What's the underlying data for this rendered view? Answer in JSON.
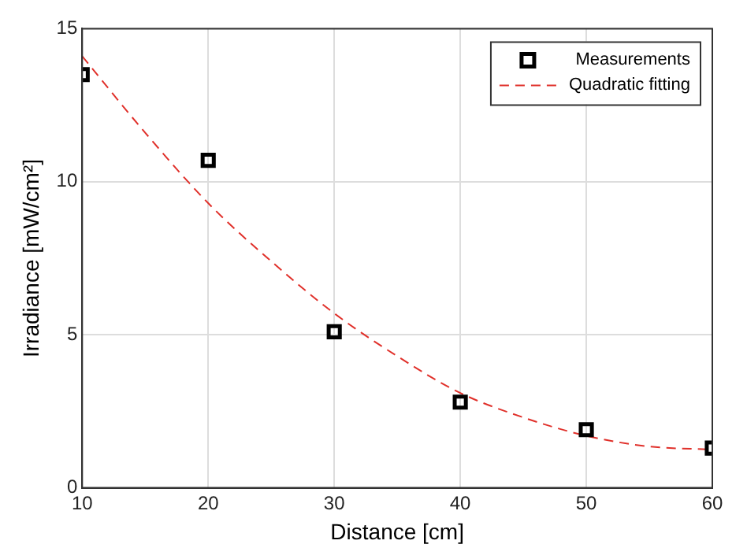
{
  "chart_data": {
    "type": "scatter",
    "xlabel": "Distance [cm]",
    "ylabel": "Irradiance [mW/cm²]",
    "xlim": [
      10,
      60
    ],
    "xticks": [
      10,
      20,
      30,
      40,
      50,
      60
    ],
    "ylim": [
      0,
      15
    ],
    "yticks": [
      0,
      5,
      10,
      15
    ],
    "grid": true,
    "legend": "top right",
    "series": [
      {
        "name": "Measurements",
        "color": "#000000",
        "marker": "square",
        "x": [
          10,
          20,
          30,
          40,
          50,
          60
        ],
        "values": [
          13.5,
          10.7,
          5.1,
          2.8,
          1.9,
          1.3
        ]
      },
      {
        "name": "Quadratic fitting",
        "type": "line",
        "color": "#e0302a",
        "line_style": "dashed",
        "marker": "none",
        "x": [
          10,
          15,
          20,
          25,
          30,
          35,
          40,
          45,
          50,
          55,
          60
        ],
        "values": [
          14.1,
          11.6,
          9.3,
          7.4,
          5.7,
          4.3,
          3.1,
          2.3,
          1.7,
          1.35,
          1.25
        ]
      }
    ]
  }
}
